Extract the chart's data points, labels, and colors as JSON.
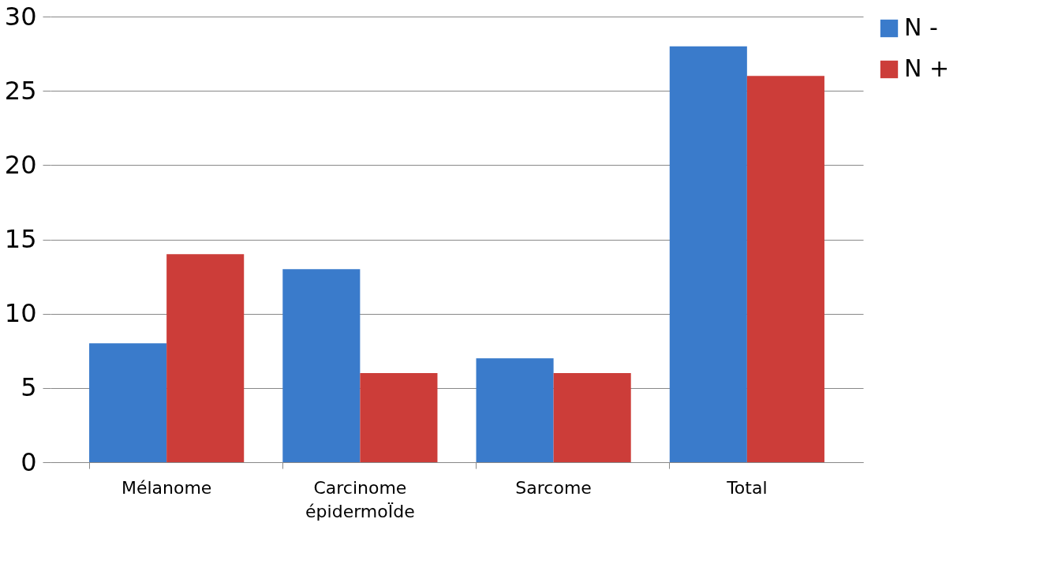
{
  "chart_data": {
    "type": "bar",
    "categories": [
      "Mélanome",
      "Carcinome épidermoÏde",
      "Sarcome",
      "Total"
    ],
    "series": [
      {
        "name": "N -",
        "color": "#3a7bcb",
        "values": [
          8,
          13,
          7,
          28
        ]
      },
      {
        "name": "N +",
        "color": "#cc3d39",
        "values": [
          14,
          6,
          6,
          26
        ]
      }
    ],
    "ylim": [
      0,
      30
    ],
    "yticks": [
      0,
      5,
      10,
      15,
      20,
      25,
      30
    ],
    "grid": "y",
    "legend": "right"
  }
}
